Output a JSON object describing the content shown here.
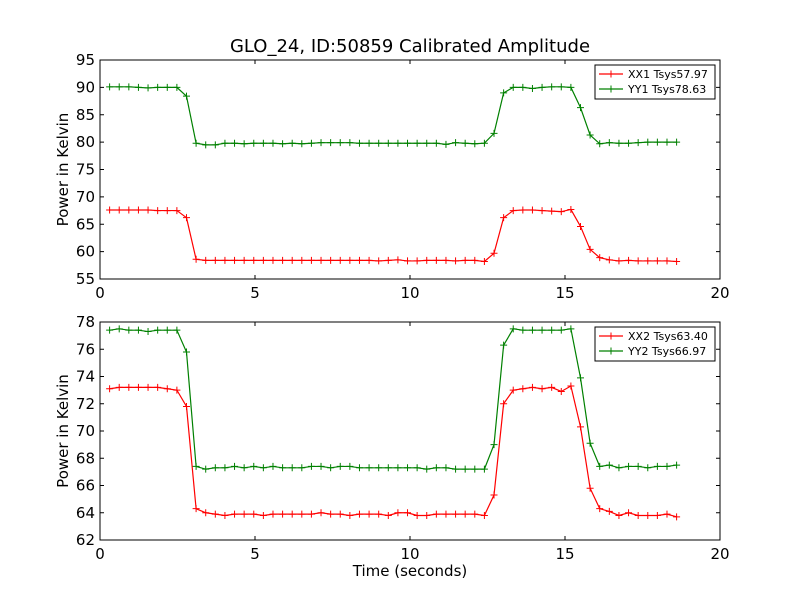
{
  "title": "GLO_24, ID:50859 Calibrated Amplitude",
  "colors": {
    "red": "#ff0000",
    "green": "#008000"
  },
  "chart_data": [
    {
      "type": "line",
      "title": "GLO_24, ID:50859 Calibrated Amplitude",
      "xlabel": "",
      "ylabel": "Power in Kelvin",
      "xlim": [
        0,
        20
      ],
      "ylim": [
        55,
        95
      ],
      "xticks": [
        0,
        5,
        10,
        15,
        20
      ],
      "yticks": [
        55,
        60,
        65,
        70,
        75,
        80,
        85,
        90,
        95
      ],
      "legend": "top-right",
      "x": [
        0.31,
        0.62,
        0.93,
        1.24,
        1.55,
        1.86,
        2.17,
        2.48,
        2.79,
        3.1,
        3.41,
        3.72,
        4.03,
        4.34,
        4.65,
        4.96,
        5.27,
        5.58,
        5.89,
        6.2,
        6.51,
        6.82,
        7.13,
        7.44,
        7.75,
        8.06,
        8.37,
        8.68,
        8.99,
        9.3,
        9.61,
        9.92,
        10.23,
        10.54,
        10.85,
        11.16,
        11.47,
        11.78,
        12.09,
        12.4,
        12.71,
        13.02,
        13.33,
        13.64,
        13.95,
        14.26,
        14.57,
        14.88,
        15.19,
        15.5,
        15.81,
        16.12,
        16.43,
        16.74,
        17.05,
        17.36,
        17.67,
        17.98,
        18.29,
        18.6
      ],
      "series": [
        {
          "name": "XX1 Tsys57.97",
          "color": "#ff0000",
          "values": [
            67.6,
            67.6,
            67.6,
            67.6,
            67.6,
            67.5,
            67.5,
            67.5,
            66.2,
            58.6,
            58.4,
            58.4,
            58.4,
            58.4,
            58.4,
            58.4,
            58.4,
            58.4,
            58.4,
            58.4,
            58.4,
            58.4,
            58.4,
            58.4,
            58.4,
            58.4,
            58.4,
            58.4,
            58.3,
            58.4,
            58.5,
            58.3,
            58.3,
            58.4,
            58.4,
            58.4,
            58.3,
            58.4,
            58.4,
            58.2,
            59.7,
            66.2,
            67.5,
            67.6,
            67.6,
            67.5,
            67.4,
            67.3,
            67.7,
            64.6,
            60.4,
            58.9,
            58.5,
            58.3,
            58.4,
            58.3,
            58.3,
            58.3,
            58.3,
            58.2
          ]
        },
        {
          "name": "YY1 Tsys78.63",
          "color": "#008000",
          "values": [
            90.1,
            90.1,
            90.1,
            90.0,
            89.9,
            90.0,
            90.0,
            90.0,
            88.4,
            79.8,
            79.5,
            79.5,
            79.8,
            79.8,
            79.7,
            79.8,
            79.8,
            79.8,
            79.7,
            79.8,
            79.7,
            79.8,
            79.9,
            79.9,
            79.9,
            79.9,
            79.8,
            79.8,
            79.8,
            79.8,
            79.8,
            79.8,
            79.8,
            79.8,
            79.8,
            79.6,
            79.9,
            79.8,
            79.7,
            79.8,
            81.6,
            89.0,
            90.0,
            90.0,
            89.8,
            90.0,
            90.1,
            90.1,
            90.0,
            86.3,
            81.3,
            79.7,
            79.9,
            79.8,
            79.8,
            79.9,
            80.0,
            80.0,
            80.0,
            80.0
          ]
        }
      ]
    },
    {
      "type": "line",
      "title": "",
      "xlabel": "Time (seconds)",
      "ylabel": "Power in Kelvin",
      "xlim": [
        0,
        20
      ],
      "ylim": [
        62,
        78
      ],
      "xticks": [
        0,
        5,
        10,
        15,
        20
      ],
      "yticks": [
        62,
        64,
        66,
        68,
        70,
        72,
        74,
        76,
        78
      ],
      "legend": "top-right",
      "x": [
        0.31,
        0.62,
        0.93,
        1.24,
        1.55,
        1.86,
        2.17,
        2.48,
        2.79,
        3.1,
        3.41,
        3.72,
        4.03,
        4.34,
        4.65,
        4.96,
        5.27,
        5.58,
        5.89,
        6.2,
        6.51,
        6.82,
        7.13,
        7.44,
        7.75,
        8.06,
        8.37,
        8.68,
        8.99,
        9.3,
        9.61,
        9.92,
        10.23,
        10.54,
        10.85,
        11.16,
        11.47,
        11.78,
        12.09,
        12.4,
        12.71,
        13.02,
        13.33,
        13.64,
        13.95,
        14.26,
        14.57,
        14.88,
        15.19,
        15.5,
        15.81,
        16.12,
        16.43,
        16.74,
        17.05,
        17.36,
        17.67,
        17.98,
        18.29,
        18.6
      ],
      "series": [
        {
          "name": "XX2 Tsys63.40",
          "color": "#ff0000",
          "values": [
            73.1,
            73.2,
            73.2,
            73.2,
            73.2,
            73.2,
            73.1,
            73.0,
            71.8,
            64.3,
            64.0,
            63.9,
            63.8,
            63.9,
            63.9,
            63.9,
            63.8,
            63.9,
            63.9,
            63.9,
            63.9,
            63.9,
            64.0,
            63.9,
            63.9,
            63.8,
            63.9,
            63.9,
            63.9,
            63.8,
            64.0,
            64.0,
            63.8,
            63.8,
            63.9,
            63.9,
            63.9,
            63.9,
            63.9,
            63.8,
            65.3,
            72.0,
            73.0,
            73.1,
            73.2,
            73.1,
            73.2,
            72.9,
            73.3,
            70.3,
            65.8,
            64.3,
            64.1,
            63.8,
            64.0,
            63.8,
            63.8,
            63.8,
            63.9,
            63.7
          ]
        },
        {
          "name": "YY2 Tsys66.97",
          "color": "#008000",
          "values": [
            77.4,
            77.5,
            77.4,
            77.4,
            77.3,
            77.4,
            77.4,
            77.4,
            75.8,
            67.4,
            67.2,
            67.3,
            67.3,
            67.4,
            67.3,
            67.4,
            67.3,
            67.4,
            67.3,
            67.3,
            67.3,
            67.4,
            67.4,
            67.3,
            67.4,
            67.4,
            67.3,
            67.3,
            67.3,
            67.3,
            67.3,
            67.3,
            67.3,
            67.2,
            67.3,
            67.3,
            67.2,
            67.2,
            67.2,
            67.2,
            69.0,
            76.3,
            77.5,
            77.4,
            77.4,
            77.4,
            77.4,
            77.4,
            77.5,
            73.9,
            69.1,
            67.4,
            67.5,
            67.3,
            67.4,
            67.4,
            67.3,
            67.4,
            67.4,
            67.5
          ]
        }
      ]
    }
  ]
}
